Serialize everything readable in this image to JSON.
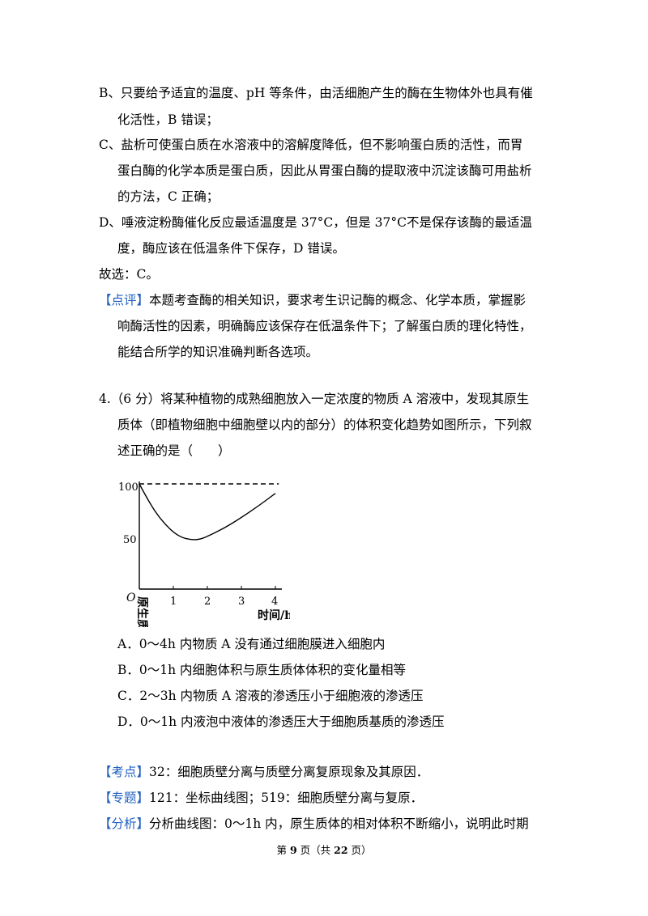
{
  "explanation": {
    "b1": "B、只要给予适宜的温度、pH 等条件，由活细胞产生的酶在生物体外也具有催",
    "b2": "化活性，B 错误；",
    "c1": "C、盐析可使蛋白质在水溶液中的溶解度降低，但不影响蛋白质的活性，而胃",
    "c2": "蛋白酶的化学本质是蛋白质，因此从胃蛋白酶的提取液中沉淀该酶可用盐析",
    "c3": "的方法，C 正确；",
    "d1": "D、唾液淀粉酶催化反应最适温度是 37°C，但是 37°C不是保存该酶的最适温",
    "d2": "度，酶应该在低温条件下保存，D 错误。",
    "answer": "故选：C。"
  },
  "comment": {
    "tag": "【点评】",
    "l1": "本题考查酶的相关知识，要求考生识记酶的概念、化学本质，掌握影",
    "l2": "响酶活性的因素，明确酶应该保存在低温条件下；了解蛋白质的理化特性，",
    "l3": "能结合所学的知识准确判断各选项。"
  },
  "question": {
    "l1": "4.（6 分）将某种植物的成熟细胞放入一定浓度的物质 A 溶液中，发现其原生",
    "l2": "质体（即植物细胞中细胞壁以内的部分）的体积变化趋势如图所示，下列叙",
    "l3": "述正确的是（　　）",
    "options": [
      "A．0～4h 内物质 A 没有通过细胞膜进入细胞内",
      "B．0～1h 内细胞体积与原生质体体积的变化量相等",
      "C．2～3h 内物质 A 溶液的渗透压小于细胞液的渗透压",
      "D．0～1h 内液泡中液体的渗透压大于细胞质基质的渗透压"
    ]
  },
  "chart_data": {
    "type": "line",
    "title": "",
    "xlabel": "时间/h",
    "ylabel": "原生质体的相对体积/%",
    "x_ticks": [
      "1",
      "2",
      "3",
      "4"
    ],
    "y_ticks": [
      "100",
      "50"
    ],
    "origin_label": "O",
    "xlim": [
      0,
      4
    ],
    "ylim": [
      0,
      110
    ],
    "series": [
      {
        "style": "solid",
        "x": [
          0,
          0.25,
          0.5,
          0.75,
          1.0,
          1.25,
          1.5,
          1.75,
          2.0,
          2.5,
          3.0,
          3.5,
          4.0
        ],
        "y": [
          100,
          85,
          72,
          62,
          54,
          49,
          47,
          47,
          50,
          58,
          68,
          79,
          91
        ]
      },
      {
        "style": "dashed",
        "x": [
          0,
          4.1
        ],
        "y": [
          100,
          100
        ]
      }
    ]
  },
  "analysis": {
    "kaodian_tag": "【考点】",
    "kaodian": "32：细胞质壁分离与质壁分离复原现象及其原因．",
    "zhuanti_tag": "【专题】",
    "zhuanti": "121：坐标曲线图；519：细胞质壁分离与复原．",
    "fenxi_tag": "【分析】",
    "fenxi": "分析曲线图：0～1h 内，原生质体的相对体积不断缩小，说明此时期"
  },
  "footer": {
    "pre": "第 ",
    "page": "9",
    "mid": " 页（共 ",
    "total": "22",
    "post": " 页）"
  }
}
